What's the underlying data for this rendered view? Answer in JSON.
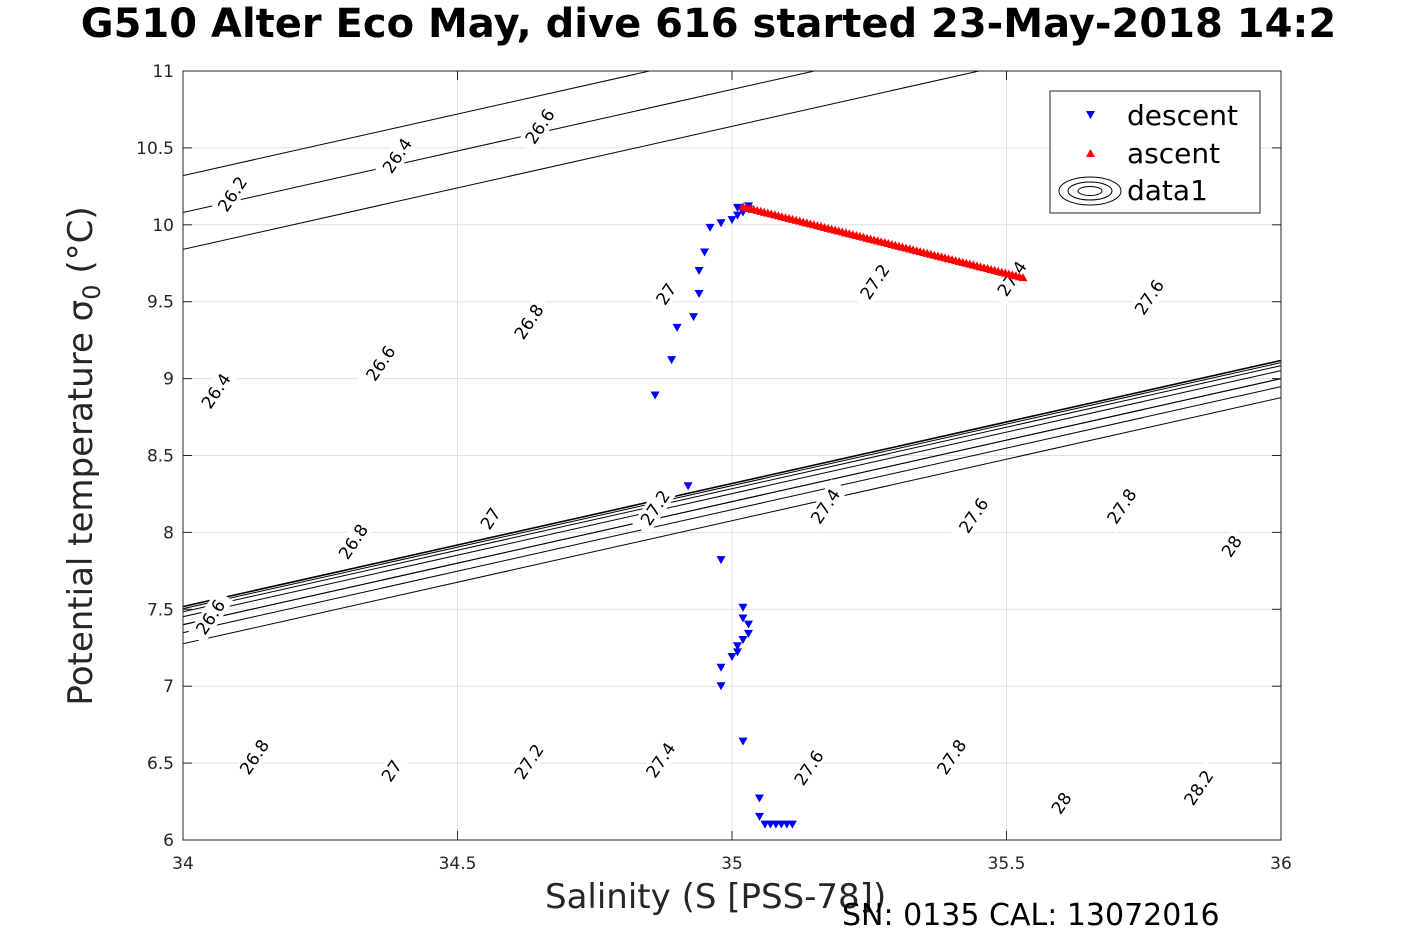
{
  "figure": {
    "title": "G510 Alter Eco May, dive 616 started 23-May-2018 14:2",
    "footer": "SN: 0135  CAL: 13072016"
  },
  "chart_data": {
    "type": "scatter",
    "title": "G510 Alter Eco May, dive 616 started 23-May-2018 14:2",
    "xlabel": "Salinity (S [PSS-78])",
    "ylabel": "Potential temperature σ",
    "ylabel_sub": "0",
    "ylabel_unit": "(°C)",
    "xlim": [
      34,
      36
    ],
    "ylim": [
      6,
      11
    ],
    "xticks": [
      34,
      34.5,
      35,
      35.5,
      36
    ],
    "xtick_labels": [
      "34",
      "34.5",
      "35",
      "35.5",
      "36"
    ],
    "yticks": [
      6,
      6.5,
      7,
      7.5,
      8,
      8.5,
      9,
      9.5,
      10,
      10.5,
      11
    ],
    "ytick_labels": [
      "6",
      "6.5",
      "7",
      "7.5",
      "8",
      "8.5",
      "9",
      "9.5",
      "10",
      "10.5",
      "11"
    ],
    "grid": true,
    "legend_position": "top-right",
    "series": [
      {
        "name": "descent",
        "color": "#0000ff",
        "marker": "triangle-down",
        "points": [
          [
            34.86,
            8.89
          ],
          [
            34.89,
            9.12
          ],
          [
            34.9,
            9.33
          ],
          [
            34.92,
            8.3
          ],
          [
            34.93,
            9.4
          ],
          [
            34.94,
            9.55
          ],
          [
            34.94,
            9.7
          ],
          [
            34.95,
            9.82
          ],
          [
            34.96,
            9.98
          ],
          [
            34.98,
            10.01
          ],
          [
            35.0,
            10.03
          ],
          [
            35.01,
            10.06
          ],
          [
            35.01,
            10.11
          ],
          [
            35.02,
            10.08
          ],
          [
            35.02,
            10.09
          ],
          [
            35.03,
            10.1
          ],
          [
            35.03,
            10.12
          ],
          [
            34.98,
            7.82
          ],
          [
            35.02,
            7.51
          ],
          [
            35.02,
            7.44
          ],
          [
            35.03,
            7.4
          ],
          [
            35.03,
            7.34
          ],
          [
            35.02,
            7.3
          ],
          [
            35.01,
            7.26
          ],
          [
            35.01,
            7.22
          ],
          [
            35.0,
            7.19
          ],
          [
            34.98,
            7.12
          ],
          [
            34.98,
            7.0
          ],
          [
            35.02,
            6.64
          ],
          [
            35.05,
            6.27
          ],
          [
            35.05,
            6.15
          ],
          [
            35.06,
            6.1
          ],
          [
            35.07,
            6.1
          ],
          [
            35.08,
            6.1
          ],
          [
            35.09,
            6.1
          ],
          [
            35.1,
            6.1
          ],
          [
            35.11,
            6.1
          ]
        ]
      },
      {
        "name": "ascent",
        "color": "#ff0000",
        "marker": "triangle-up",
        "start": [
          35.02,
          10.12
        ],
        "end": [
          35.53,
          9.66
        ],
        "count": 80
      },
      {
        "name": "data1",
        "color": "#000000",
        "marker": "contour",
        "levels": [
          26.2,
          26.4,
          26.6,
          26.8,
          27.0,
          27.2,
          27.4,
          27.6,
          27.8,
          28.0,
          28.2
        ],
        "line_anchors": [
          [
            34.2,
            10.0
          ],
          [
            34.4,
            10.4
          ],
          [
            34.6,
            10.8
          ],
          [
            34.28,
            7.5
          ],
          [
            34.5,
            7.8
          ],
          [
            34.72,
            8.08
          ],
          [
            34.95,
            8.28
          ],
          [
            35.18,
            8.46
          ],
          [
            35.42,
            8.62
          ],
          [
            35.66,
            8.78
          ],
          [
            35.9,
            8.92
          ],
          [
            36.14,
            9.06
          ]
        ],
        "line_slope": 0.8,
        "labels": [
          {
            "text": "26.2",
            "x": 34.09,
            "y": 10.2
          },
          {
            "text": "26.4",
            "x": 34.39,
            "y": 10.45
          },
          {
            "text": "26.6",
            "x": 34.65,
            "y": 10.64
          },
          {
            "text": "26.4",
            "x": 34.06,
            "y": 8.92
          },
          {
            "text": "26.6",
            "x": 34.36,
            "y": 9.1
          },
          {
            "text": "26.8",
            "x": 34.63,
            "y": 9.37
          },
          {
            "text": "27",
            "x": 34.88,
            "y": 9.55
          },
          {
            "text": "26.6",
            "x": 34.05,
            "y": 7.45
          },
          {
            "text": "26.8",
            "x": 34.31,
            "y": 7.94
          },
          {
            "text": "27",
            "x": 34.56,
            "y": 8.09
          },
          {
            "text": "27.2",
            "x": 34.86,
            "y": 8.16
          },
          {
            "text": "27.2",
            "x": 35.26,
            "y": 9.63
          },
          {
            "text": "27.4",
            "x": 35.51,
            "y": 9.65
          },
          {
            "text": "27.6",
            "x": 35.76,
            "y": 9.53
          },
          {
            "text": "27.4",
            "x": 35.17,
            "y": 8.17
          },
          {
            "text": "27.6",
            "x": 35.44,
            "y": 8.11
          },
          {
            "text": "27.8",
            "x": 35.71,
            "y": 8.17
          },
          {
            "text": "28",
            "x": 35.91,
            "y": 7.91
          },
          {
            "text": "26.8",
            "x": 34.13,
            "y": 6.54
          },
          {
            "text": "27",
            "x": 34.38,
            "y": 6.45
          },
          {
            "text": "27.2",
            "x": 34.63,
            "y": 6.51
          },
          {
            "text": "27.4",
            "x": 34.87,
            "y": 6.52
          },
          {
            "text": "27.6",
            "x": 35.14,
            "y": 6.47
          },
          {
            "text": "27.8",
            "x": 35.4,
            "y": 6.54
          },
          {
            "text": "28",
            "x": 35.6,
            "y": 6.24
          },
          {
            "text": "28.2",
            "x": 35.85,
            "y": 6.34
          }
        ]
      }
    ]
  }
}
